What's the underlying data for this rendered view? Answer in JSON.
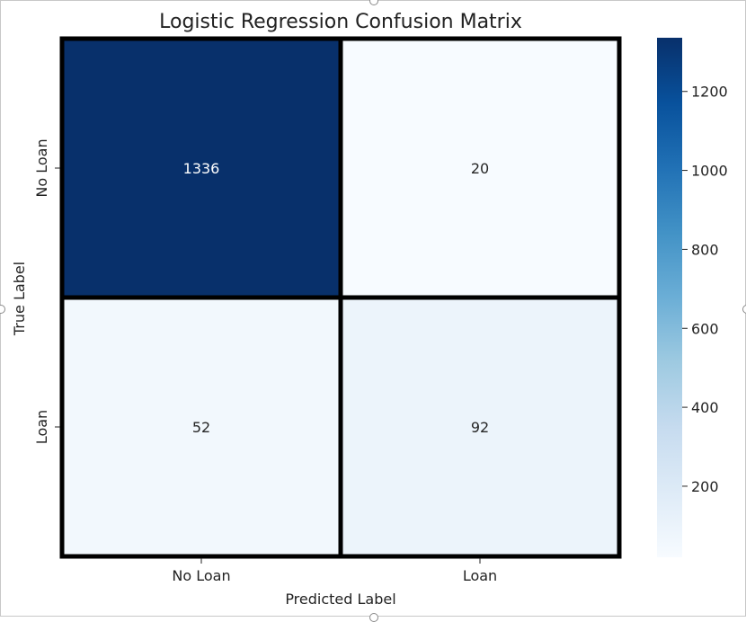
{
  "chart_data": {
    "type": "heatmap",
    "title": "Logistic Regression Confusion Matrix",
    "xlabel": "Predicted Label",
    "ylabel": "True Label",
    "x_categories": [
      "No Loan",
      "Loan"
    ],
    "y_categories": [
      "No Loan",
      "Loan"
    ],
    "values": [
      [
        1336,
        20
      ],
      [
        52,
        92
      ]
    ],
    "colormap": "Blues",
    "colorbar": {
      "min": 20,
      "max": 1336,
      "ticks": [
        200,
        400,
        600,
        800,
        1000,
        1200
      ]
    },
    "cell_border_color": "#000000"
  }
}
